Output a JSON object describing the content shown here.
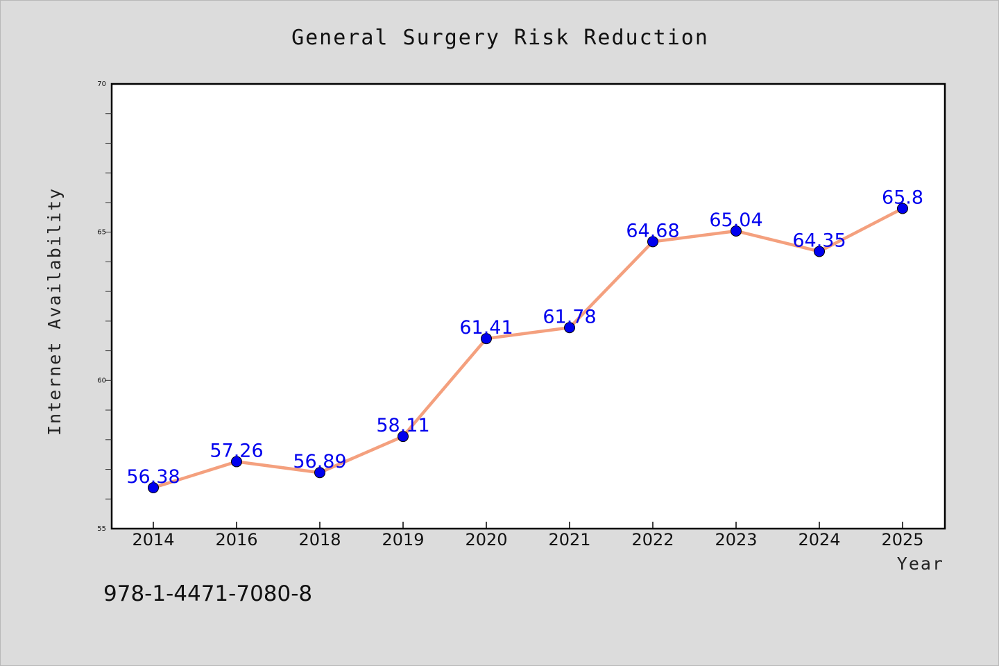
{
  "chart_data": {
    "type": "line",
    "title": "General Surgery Risk Reduction",
    "xlabel": "Year",
    "ylabel": "Internet Availability",
    "categories": [
      "2014",
      "2016",
      "2018",
      "2019",
      "2020",
      "2021",
      "2022",
      "2023",
      "2024",
      "2025"
    ],
    "values": [
      56.38,
      57.26,
      56.89,
      58.11,
      61.41,
      61.78,
      64.68,
      65.04,
      64.35,
      65.8
    ],
    "data_labels": [
      "56.38",
      "57.26",
      "56.89",
      "58.11",
      "61.41",
      "61.78",
      "64.68",
      "65.04",
      "64.35",
      "65.8"
    ],
    "ylim": [
      55,
      70
    ],
    "yticks": [
      "55",
      "60",
      "65",
      "70"
    ],
    "grid": false,
    "legend": "none",
    "line_color": "#f4a07e",
    "marker_color": "#0000ee",
    "label_color": "#0000ee"
  },
  "footer": {
    "isbn": "978-1-4471-7080-8"
  }
}
